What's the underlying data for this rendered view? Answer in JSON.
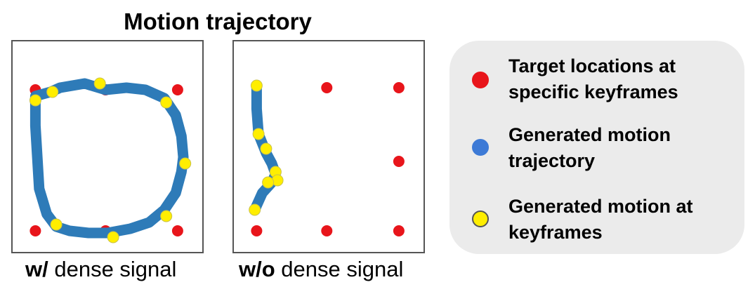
{
  "title": "Motion trajectory",
  "panels": [
    {
      "caption_bold": "w/",
      "caption_rest": " dense signal",
      "targets": [
        [
          0.12,
          0.23
        ],
        [
          0.49,
          0.23
        ],
        [
          0.87,
          0.23
        ],
        [
          0.9,
          0.58
        ],
        [
          0.12,
          0.9
        ],
        [
          0.49,
          0.9
        ],
        [
          0.87,
          0.9
        ]
      ],
      "trajectory": [
        [
          0.49,
          0.23
        ],
        [
          0.38,
          0.2
        ],
        [
          0.25,
          0.22
        ],
        [
          0.2,
          0.24
        ],
        [
          0.12,
          0.26
        ],
        [
          0.12,
          0.4
        ],
        [
          0.13,
          0.55
        ],
        [
          0.14,
          0.7
        ],
        [
          0.18,
          0.82
        ],
        [
          0.23,
          0.88
        ],
        [
          0.3,
          0.9
        ],
        [
          0.4,
          0.91
        ],
        [
          0.5,
          0.91
        ],
        [
          0.62,
          0.89
        ],
        [
          0.72,
          0.86
        ],
        [
          0.8,
          0.8
        ],
        [
          0.86,
          0.72
        ],
        [
          0.89,
          0.62
        ],
        [
          0.9,
          0.55
        ],
        [
          0.89,
          0.45
        ],
        [
          0.86,
          0.35
        ],
        [
          0.8,
          0.27
        ],
        [
          0.7,
          0.23
        ],
        [
          0.6,
          0.22
        ],
        [
          0.49,
          0.23
        ]
      ],
      "keyframes": [
        [
          0.21,
          0.24
        ],
        [
          0.46,
          0.2
        ],
        [
          0.81,
          0.29
        ],
        [
          0.91,
          0.58
        ],
        [
          0.81,
          0.83
        ],
        [
          0.53,
          0.93
        ],
        [
          0.23,
          0.87
        ],
        [
          0.12,
          0.28
        ]
      ]
    },
    {
      "caption_bold": "w/o",
      "caption_rest": " dense signal",
      "targets": [
        [
          0.49,
          0.22
        ],
        [
          0.87,
          0.22
        ],
        [
          0.87,
          0.57
        ],
        [
          0.12,
          0.9
        ],
        [
          0.49,
          0.9
        ],
        [
          0.87,
          0.9
        ]
      ],
      "trajectory": [
        [
          0.12,
          0.21
        ],
        [
          0.12,
          0.32
        ],
        [
          0.13,
          0.44
        ],
        [
          0.17,
          0.53
        ],
        [
          0.2,
          0.58
        ],
        [
          0.22,
          0.63
        ],
        [
          0.2,
          0.67
        ],
        [
          0.15,
          0.72
        ],
        [
          0.11,
          0.8
        ]
      ],
      "keyframes": [
        [
          0.12,
          0.21
        ],
        [
          0.13,
          0.44
        ],
        [
          0.17,
          0.51
        ],
        [
          0.22,
          0.62
        ],
        [
          0.23,
          0.66
        ],
        [
          0.18,
          0.67
        ],
        [
          0.11,
          0.8
        ]
      ]
    }
  ],
  "legend": [
    {
      "marker": "red-dot",
      "color": "#e8151b",
      "border": "#e8151b",
      "line1": "Target locations at",
      "line2": "specific keyframes"
    },
    {
      "marker": "blue-dot",
      "color": "#3d7ad6",
      "border": "#3d7ad6",
      "line1": "Generated motion",
      "line2": "trajectory"
    },
    {
      "marker": "yellow-dot",
      "color": "#ffee00",
      "border": "#555555",
      "line1": "Generated motion at",
      "line2": "keyframes"
    }
  ],
  "colors": {
    "target": "#e8151b",
    "trajectory": "#2e7bb8",
    "keyframe": "#ffee00",
    "keyframe_edge": "#c9c24a"
  }
}
